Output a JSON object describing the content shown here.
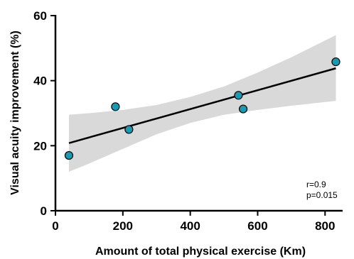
{
  "chart_data": {
    "type": "scatter",
    "xlabel": "Amount of total physical exercise (Km)",
    "ylabel": "Visual acuity improvement (%)",
    "xlim": [
      0,
      850
    ],
    "ylim": [
      0,
      60
    ],
    "x_ticks": [
      0,
      200,
      400,
      600,
      800
    ],
    "y_ticks": [
      0,
      20,
      40,
      60
    ],
    "x_tick_labels": [
      "0",
      "200",
      "400",
      "600",
      "800"
    ],
    "y_tick_labels": [
      "0",
      "20",
      "40",
      "60"
    ],
    "grid": false,
    "legend": "none",
    "points": [
      {
        "x": 40,
        "y": 17
      },
      {
        "x": 178,
        "y": 32
      },
      {
        "x": 218,
        "y": 25
      },
      {
        "x": 543,
        "y": 35.5
      },
      {
        "x": 557,
        "y": 31.3
      },
      {
        "x": 832,
        "y": 45.8
      }
    ],
    "regression_line": {
      "x": [
        40,
        832
      ],
      "y": [
        20.8,
        43.8
      ]
    },
    "confidence_band": {
      "x": [
        40,
        100,
        200,
        300,
        400,
        500,
        600,
        700,
        832
      ],
      "upper": [
        29.5,
        30.0,
        31.0,
        32.5,
        35.0,
        38.2,
        42.5,
        47.2,
        54.0
      ],
      "lower": [
        12.0,
        14.5,
        19.0,
        23.5,
        27.0,
        29.5,
        31.0,
        32.3,
        33.8
      ]
    },
    "annotations": [
      "r=0.9",
      "p=0.015"
    ],
    "colors": {
      "point_fill": "#1a9ab0",
      "point_stroke": "#000000",
      "band": "#d9d9d9",
      "line": "#000000"
    }
  }
}
